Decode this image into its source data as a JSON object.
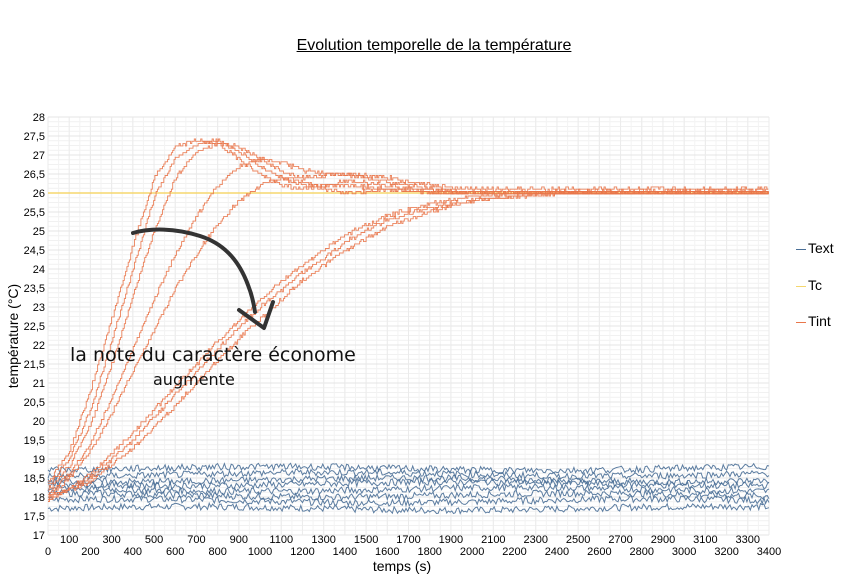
{
  "chart_data": {
    "type": "line",
    "title": "Evolution temporelle de la température",
    "xlabel": "temps (s)",
    "ylabel": "température (°C)",
    "xlim": [
      0,
      3400
    ],
    "ylim": [
      17,
      28
    ],
    "xticks": [
      0,
      100,
      200,
      300,
      400,
      500,
      600,
      700,
      800,
      900,
      1000,
      1100,
      1200,
      1300,
      1400,
      1500,
      1600,
      1700,
      1800,
      1900,
      2000,
      2100,
      2200,
      2300,
      2400,
      2500,
      2600,
      2700,
      2800,
      2900,
      3000,
      3100,
      3200,
      3300,
      3400
    ],
    "yticks": [
      17,
      17.5,
      18,
      18.5,
      19,
      19.5,
      20,
      20.5,
      21,
      21.5,
      22,
      22.5,
      23,
      23.5,
      24,
      24.5,
      25,
      25.5,
      26,
      26.5,
      27,
      27.5,
      28
    ],
    "grid": true,
    "legend_position": "right",
    "series": [
      {
        "name": "Text",
        "color": "#4a6f97",
        "description_levels": [
          17.7,
          17.9,
          18.05,
          18.2,
          18.35,
          18.45,
          18.6,
          18.75
        ],
        "x": [
          0,
          3400
        ]
      },
      {
        "name": "Tc",
        "color": "#f5d76e",
        "x": [
          0,
          3400
        ],
        "y": [
          26,
          26
        ]
      },
      {
        "name": "Tint",
        "color": "#e9764a",
        "curves": [
          {
            "x": [
              0,
              100,
              200,
              300,
              400,
              500,
              600,
              700,
              800,
              900,
              1000,
              1100,
              1200,
              1300,
              1400,
              1500,
              1600,
              1800,
              2000,
              2400,
              3400
            ],
            "y": [
              18.4,
              19.2,
              20.8,
              22.7,
              24.6,
              26.4,
              27.2,
              27.4,
              27.3,
              26.9,
              26.5,
              26.2,
              26.1,
              26.2,
              26.3,
              26.3,
              26.2,
              26.0,
              26.0,
              26.0,
              26.0
            ]
          },
          {
            "x": [
              0,
              100,
              200,
              300,
              400,
              500,
              600,
              700,
              800,
              900,
              1000,
              1100,
              1200,
              1400,
              1600,
              1800,
              2000,
              3400
            ],
            "y": [
              18.3,
              19.0,
              20.3,
              22.1,
              24.0,
              25.9,
              26.9,
              27.3,
              27.4,
              27.1,
              26.7,
              26.4,
              26.2,
              26.2,
              26.1,
              26.0,
              26.0,
              26.0
            ]
          },
          {
            "x": [
              0,
              100,
              200,
              300,
              400,
              500,
              600,
              700,
              800,
              900,
              1000,
              1100,
              1200,
              1400,
              1600,
              1800,
              2000,
              3400
            ],
            "y": [
              18.2,
              18.8,
              19.9,
              21.5,
              23.3,
              25.0,
              26.4,
              27.1,
              27.3,
              27.2,
              26.9,
              26.6,
              26.4,
              26.5,
              26.3,
              26.1,
              26.0,
              26.1
            ]
          },
          {
            "x": [
              0,
              100,
              200,
              300,
              400,
              500,
              600,
              700,
              800,
              900,
              1000,
              1100,
              1200,
              1300,
              1400,
              1600,
              1800,
              2000,
              3400
            ],
            "y": [
              18.1,
              18.6,
              19.4,
              20.6,
              21.9,
              23.2,
              24.4,
              25.4,
              26.2,
              26.7,
              26.9,
              26.8,
              26.6,
              26.5,
              26.5,
              26.4,
              26.2,
              26.1,
              26.1
            ]
          },
          {
            "x": [
              0,
              100,
              200,
              300,
              400,
              500,
              600,
              700,
              800,
              900,
              1000,
              1100,
              1200,
              1300,
              1400,
              1600,
              1800,
              2000,
              3400
            ],
            "y": [
              18.0,
              18.5,
              19.2,
              20.2,
              21.3,
              22.4,
              23.5,
              24.4,
              25.2,
              25.8,
              26.2,
              26.4,
              26.3,
              26.1,
              26.0,
              26.1,
              26.1,
              26.0,
              26.0
            ]
          },
          {
            "x": [
              0,
              200,
              400,
              600,
              800,
              1000,
              1200,
              1400,
              1600,
              1800,
              2000,
              2200,
              2400,
              3400
            ],
            "y": [
              17.9,
              18.6,
              19.7,
              20.9,
              22.1,
              23.2,
              24.1,
              24.9,
              25.4,
              25.7,
              25.9,
              26.0,
              26.0,
              26.0
            ]
          },
          {
            "x": [
              0,
              200,
              400,
              600,
              800,
              1000,
              1200,
              1400,
              1600,
              1800,
              2000,
              2200,
              2400,
              3400
            ],
            "y": [
              17.9,
              18.5,
              19.5,
              20.7,
              21.9,
              23.0,
              23.9,
              24.7,
              25.3,
              25.6,
              25.8,
              25.9,
              26.0,
              26.0
            ]
          },
          {
            "x": [
              0,
              200,
              400,
              600,
              800,
              1000,
              1200,
              1400,
              1600,
              1800,
              2000,
              2200,
              2400,
              3400
            ],
            "y": [
              18.0,
              18.4,
              19.3,
              20.4,
              21.6,
              22.7,
              23.7,
              24.5,
              25.1,
              25.5,
              25.8,
              25.9,
              26.0,
              26.0
            ]
          }
        ]
      }
    ],
    "annotation": {
      "line1": "la note du caractère économe",
      "line2": "augmente"
    }
  },
  "legend": {
    "text": "Text",
    "tc": "Tc",
    "tint": "Tint"
  }
}
